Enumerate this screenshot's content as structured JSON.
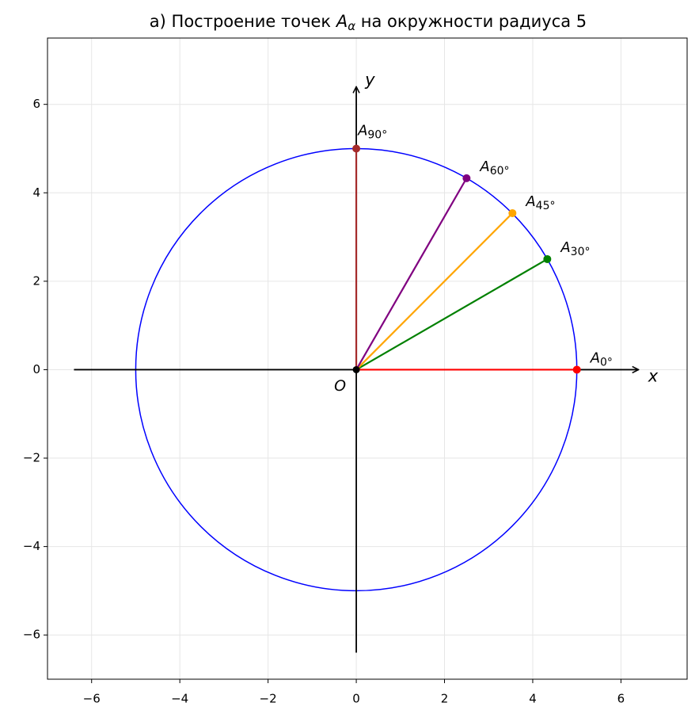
{
  "chart_data": {
    "type": "scatter",
    "title": "а) Построение точек",
    "title_symbol": "A",
    "title_subscript": "α",
    "title_end": "на окружности радиуса 5",
    "xlim": [
      -7,
      7.5
    ],
    "ylim": [
      -7,
      7.5
    ],
    "xticks": [
      {
        "value": -6,
        "label": "−6"
      },
      {
        "value": -4,
        "label": "−4"
      },
      {
        "value": -2,
        "label": "−2"
      },
      0,
      2,
      4,
      6
    ],
    "yticks": [
      {
        "value": -6,
        "label": "−6"
      },
      {
        "value": -4,
        "label": "−4"
      },
      {
        "value": -2,
        "label": "−2"
      },
      0,
      2,
      4,
      6
    ],
    "grid": true,
    "circle": {
      "radius": 5,
      "color": "#0000ff"
    },
    "axis_arrows": {
      "x": [
        -6.4,
        6.4
      ],
      "y": [
        -6.4,
        6.4
      ],
      "x_label": "x",
      "y_label": "y"
    },
    "origin": {
      "label": "O",
      "x": 0,
      "y": 0
    },
    "label_symbol": "A",
    "series": [
      {
        "name": "0°",
        "color": "#ff0000",
        "x": [
          5
        ],
        "values": [
          0
        ]
      },
      {
        "name": "30°",
        "color": "#008000",
        "x": [
          4.33
        ],
        "values": [
          2.5
        ]
      },
      {
        "name": "45°",
        "color": "#ffa500",
        "x": [
          3.54
        ],
        "values": [
          3.54
        ]
      },
      {
        "name": "60°",
        "color": "#800080",
        "x": [
          2.5
        ],
        "values": [
          4.33
        ]
      },
      {
        "name": "90°",
        "color": "#a52a2a",
        "x": [
          0
        ],
        "values": [
          5
        ]
      }
    ]
  }
}
